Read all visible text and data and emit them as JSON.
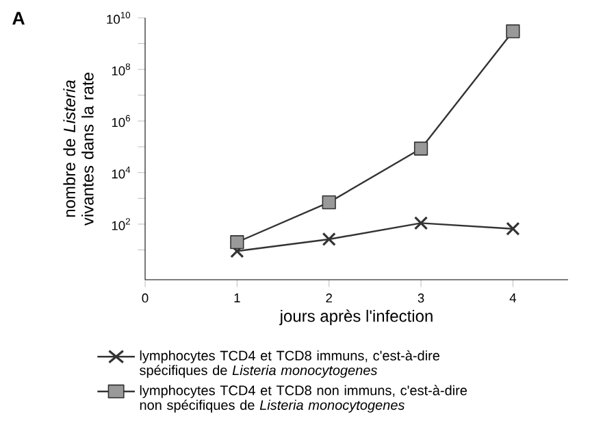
{
  "chart_data": {
    "type": "line",
    "xlabel": "jours après l'infection",
    "ylabel": "nombre de *Listeria* vivantes dans la rate",
    "annotations": [
      "A"
    ],
    "x": [
      1,
      2,
      3,
      4
    ],
    "series": [
      {
        "name": "lymphocytes TCD4 et TCD8 immuns, c'est-à-dire spécifiques de *Listeria monocytogenes*",
        "color": "#333333",
        "marker": "cross",
        "values": [
          9,
          26,
          110,
          66
        ]
      },
      {
        "name": "lymphocytes TCD4 et TCD8 non immuns, c'est-à-dire non spécifiques de *Listeria monocytogenes*",
        "color": "#999999",
        "marker": "square",
        "values": [
          20,
          700,
          85000,
          3000000000
        ]
      }
    ],
    "log": "y",
    "xlim": [
      0,
      4.6
    ],
    "xticks": [
      0,
      1,
      2,
      3,
      4
    ],
    "ylim": [
      0.7,
      10000000000
    ],
    "yticks": [
      {
        "value": 100,
        "label": "10$^{2}$"
      },
      {
        "value": 10000,
        "label": "10$^{4}$"
      },
      {
        "value": 1000000,
        "label": "10$^{6}$"
      },
      {
        "value": 100000000,
        "label": "10$^{8}$"
      },
      {
        "value": 10000000000,
        "label": "10$^{10}$"
      },
      {
        "value": 10,
        "label": null
      },
      {
        "value": 1000,
        "label": null
      },
      {
        "value": 100000,
        "label": null
      },
      {
        "value": 10000000,
        "label": null
      },
      {
        "value": 1000000000,
        "label": null
      }
    ],
    "legend": "bottom",
    "grid": false
  }
}
